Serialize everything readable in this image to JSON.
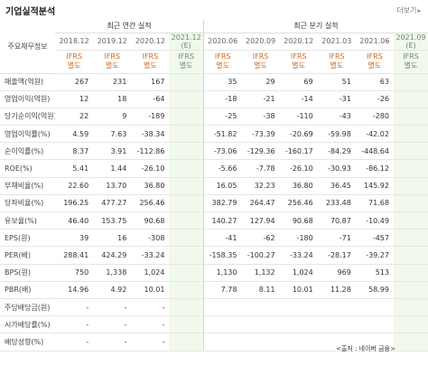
{
  "title": "기업실적분석",
  "more_label": "더보기",
  "group_label": "주요재무정보",
  "annual_title": "최근 연간 실적",
  "quarter_title": "최근 분기 실적",
  "periods": [
    "2018.12",
    "2019.12",
    "2020.12",
    "2021.12",
    "2020.06",
    "2020.09",
    "2020.12",
    "2021.03",
    "2021.06",
    "2021.09"
  ],
  "estimate_mark": "(E)",
  "ifrs_line1": "IFRS",
  "ifrs_line2": "별도",
  "rows": [
    {
      "label": "매출액(억원)",
      "values": [
        "267",
        "231",
        "167",
        "",
        "35",
        "29",
        "69",
        "51",
        "63",
        ""
      ]
    },
    {
      "label": "영업이익(억원)",
      "values": [
        "12",
        "18",
        "-64",
        "",
        "-18",
        "-21",
        "-14",
        "-31",
        "-26",
        ""
      ]
    },
    {
      "label": "당기순이익(억원)",
      "values": [
        "22",
        "9",
        "-189",
        "",
        "-25",
        "-38",
        "-110",
        "-43",
        "-280",
        ""
      ]
    },
    {
      "label": "영업이익률(%)",
      "values": [
        "4.59",
        "7.63",
        "-38.34",
        "",
        "-51.82",
        "-73.39",
        "-20.69",
        "-59.98",
        "-42.02",
        ""
      ]
    },
    {
      "label": "순이익률(%)",
      "values": [
        "8.37",
        "3.91",
        "-112.86",
        "",
        "-73.06",
        "-129.36",
        "-160.17",
        "-84.29",
        "-448.64",
        ""
      ]
    },
    {
      "label": "ROE(%)",
      "values": [
        "5.41",
        "1.44",
        "-26.10",
        "",
        "-5.66",
        "-7.78",
        "-26.10",
        "-30.93",
        "-86.12",
        ""
      ]
    },
    {
      "label": "부채비율(%)",
      "values": [
        "22.60",
        "13.70",
        "36.80",
        "",
        "16.05",
        "32.23",
        "36.80",
        "36.45",
        "145.92",
        ""
      ]
    },
    {
      "label": "당좌비율(%)",
      "values": [
        "196.25",
        "477.27",
        "256.46",
        "",
        "382.79",
        "264.47",
        "256.46",
        "233.48",
        "71.68",
        ""
      ]
    },
    {
      "label": "유보율(%)",
      "values": [
        "46.40",
        "153.75",
        "90.68",
        "",
        "140.27",
        "127.94",
        "90.68",
        "70.87",
        "-10.49",
        ""
      ]
    },
    {
      "label": "EPS(원)",
      "values": [
        "39",
        "16",
        "-308",
        "",
        "-41",
        "-62",
        "-180",
        "-71",
        "-457",
        ""
      ]
    },
    {
      "label": "PER(배)",
      "values": [
        "288.41",
        "424.29",
        "-33.24",
        "",
        "-158.35",
        "-100.27",
        "-33.24",
        "-28.17",
        "-39.27",
        ""
      ]
    },
    {
      "label": "BPS(원)",
      "values": [
        "750",
        "1,338",
        "1,024",
        "",
        "1,130",
        "1,132",
        "1,024",
        "969",
        "513",
        ""
      ]
    },
    {
      "label": "PBR(배)",
      "values": [
        "14.96",
        "4.92",
        "10.01",
        "",
        "7.78",
        "8.11",
        "10.01",
        "11.28",
        "58.99",
        ""
      ]
    },
    {
      "label": "주당배당금(원)",
      "values": [
        "-",
        "-",
        "-",
        "",
        "",
        "",
        "",
        "",
        "",
        ""
      ]
    },
    {
      "label": "시가배당률(%)",
      "values": [
        "-",
        "-",
        "-",
        "",
        "",
        "",
        "",
        "",
        "",
        ""
      ]
    },
    {
      "label": "배당성향(%)",
      "values": [
        "-",
        "-",
        "-",
        "",
        "",
        "",
        "",
        "",
        "",
        ""
      ]
    }
  ],
  "source_note": "<출처 : 네이버 금융>",
  "colors": {
    "negative": "#e0231b",
    "ifrs": "#d2691e",
    "estimate_bg": "#f1f8ec"
  }
}
